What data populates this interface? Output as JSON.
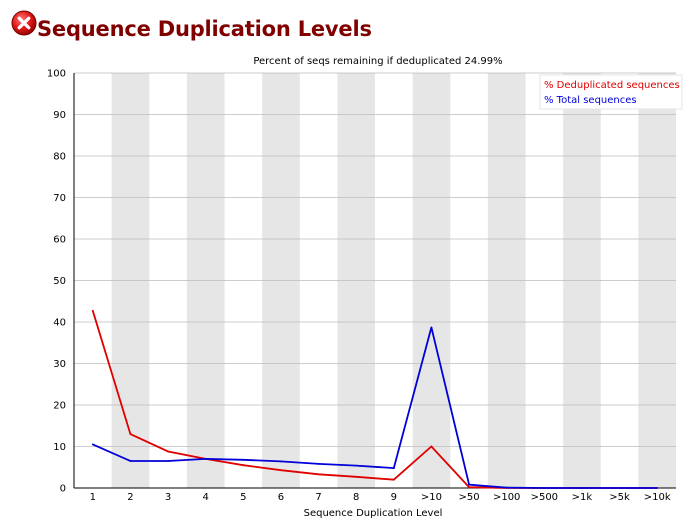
{
  "header": {
    "title": "Sequence Duplication Levels",
    "status_icon": "fail-icon",
    "status_color": "#cc0000"
  },
  "chart_data": {
    "type": "line",
    "title": "Percent of seqs remaining if deduplicated 24.99%",
    "xlabel": "Sequence Duplication Level",
    "ylabel": "",
    "categories": [
      "1",
      "2",
      "3",
      "4",
      "5",
      "6",
      "7",
      "8",
      "9",
      ">10",
      ">50",
      ">100",
      ">500",
      ">1k",
      ">5k",
      ">10k"
    ],
    "ylim": [
      0,
      100
    ],
    "yticks": [
      0,
      10,
      20,
      30,
      40,
      50,
      60,
      70,
      80,
      90,
      100
    ],
    "grid": true,
    "legend_position": "top-right",
    "series": [
      {
        "name": "% Deduplicated sequences",
        "color": "#e00000",
        "values": [
          42.7,
          13.0,
          8.8,
          7.0,
          5.5,
          4.3,
          3.3,
          2.7,
          2.0,
          10.0,
          0.2,
          0.0,
          0.0,
          0.0,
          0.0,
          0.0
        ]
      },
      {
        "name": "% Total sequences",
        "color": "#0000d8",
        "values": [
          10.5,
          6.5,
          6.5,
          7.0,
          6.8,
          6.4,
          5.8,
          5.4,
          4.8,
          38.7,
          0.8,
          0.1,
          0.0,
          0.0,
          0.0,
          0.0
        ]
      }
    ]
  }
}
